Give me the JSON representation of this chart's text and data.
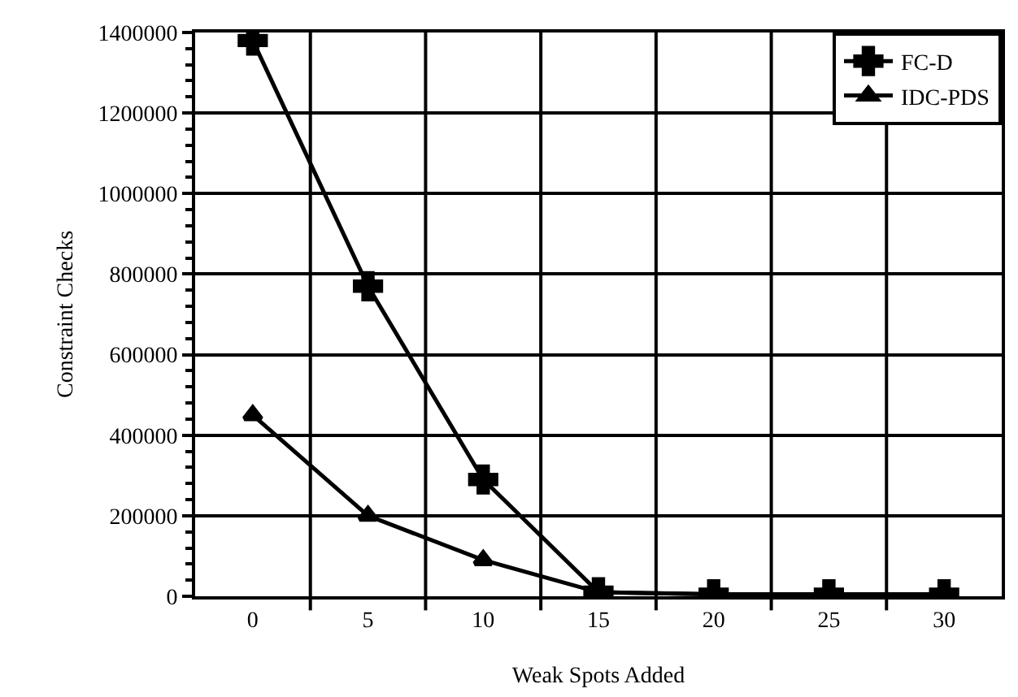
{
  "chart_data": {
    "type": "line",
    "xlabel": "Weak Spots Added",
    "ylabel": "Constraint Checks",
    "categories": [
      "0",
      "5",
      "10",
      "15",
      "20",
      "25",
      "30"
    ],
    "series": [
      {
        "name": "FC-D",
        "color": "#000000",
        "marker": "cross",
        "values": [
          1380000,
          770000,
          290000,
          10000,
          5000,
          5000,
          5000
        ]
      },
      {
        "name": "IDC-PDS",
        "color": "#000000",
        "marker": "triangle",
        "values": [
          450000,
          200000,
          90000,
          10000,
          5000,
          5000,
          5000
        ]
      }
    ],
    "ylim": [
      0,
      1400000
    ],
    "yticks": [
      0,
      200000,
      400000,
      600000,
      800000,
      1000000,
      1200000,
      1400000
    ],
    "grid": true,
    "legend": "top right",
    "line_style": "solid"
  }
}
